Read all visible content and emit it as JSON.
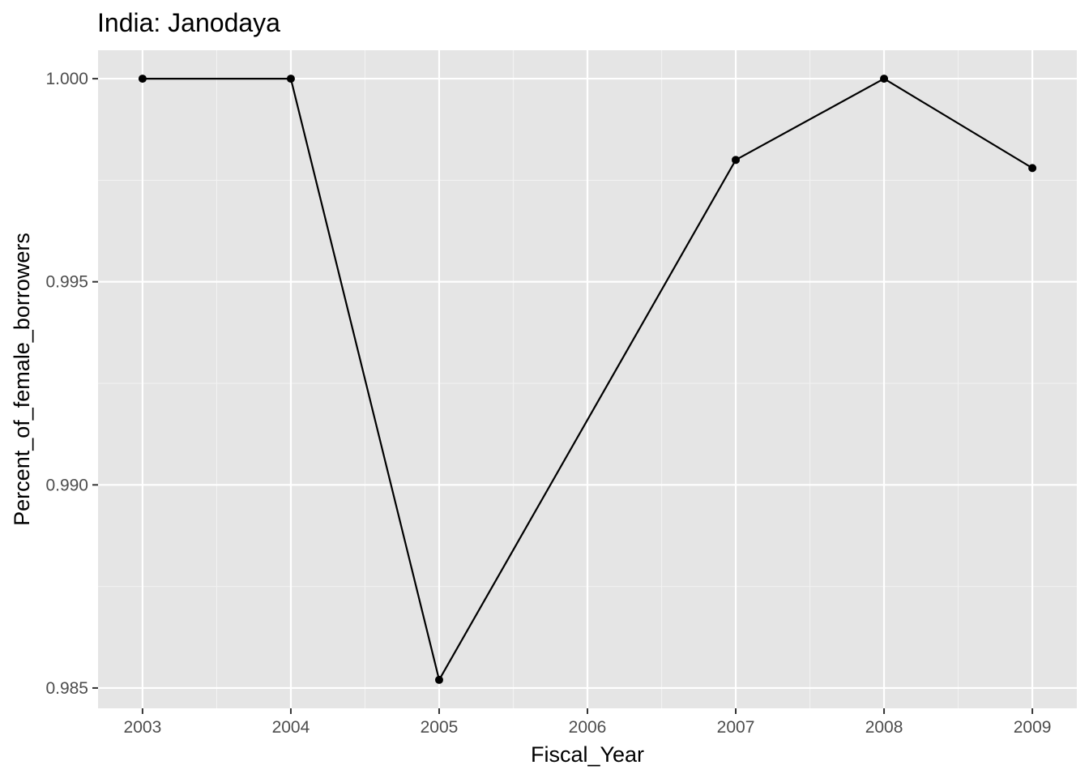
{
  "chart_data": {
    "type": "line",
    "title": "India:  Janodaya",
    "xlabel": "Fiscal_Year",
    "ylabel": "Percent_of_female_borrowers",
    "x": [
      2003,
      2004,
      2005,
      2007,
      2008,
      2009
    ],
    "y": [
      1.0,
      1.0,
      0.9852,
      0.998,
      1.0,
      0.9978
    ],
    "xlim": [
      2002.7,
      2009.3
    ],
    "ylim": [
      0.9845,
      1.0007
    ],
    "x_ticks": [
      2003,
      2004,
      2005,
      2006,
      2007,
      2008,
      2009
    ],
    "x_tick_labels": [
      "2003",
      "2004",
      "2005",
      "2006",
      "2007",
      "2008",
      "2009"
    ],
    "y_ticks": [
      0.985,
      0.99,
      0.995,
      1.0
    ],
    "y_tick_labels": [
      "0.985",
      "0.990",
      "0.995",
      "1.000"
    ],
    "grid": true,
    "legend": "none",
    "colors": {
      "panel_background": "#e5e5e5",
      "grid_major": "#ffffff",
      "grid_minor": "#f2f2f2",
      "line": "#000000",
      "point": "#000000",
      "tick_text": "#4d4d4d",
      "tick_mark": "#333333"
    }
  }
}
